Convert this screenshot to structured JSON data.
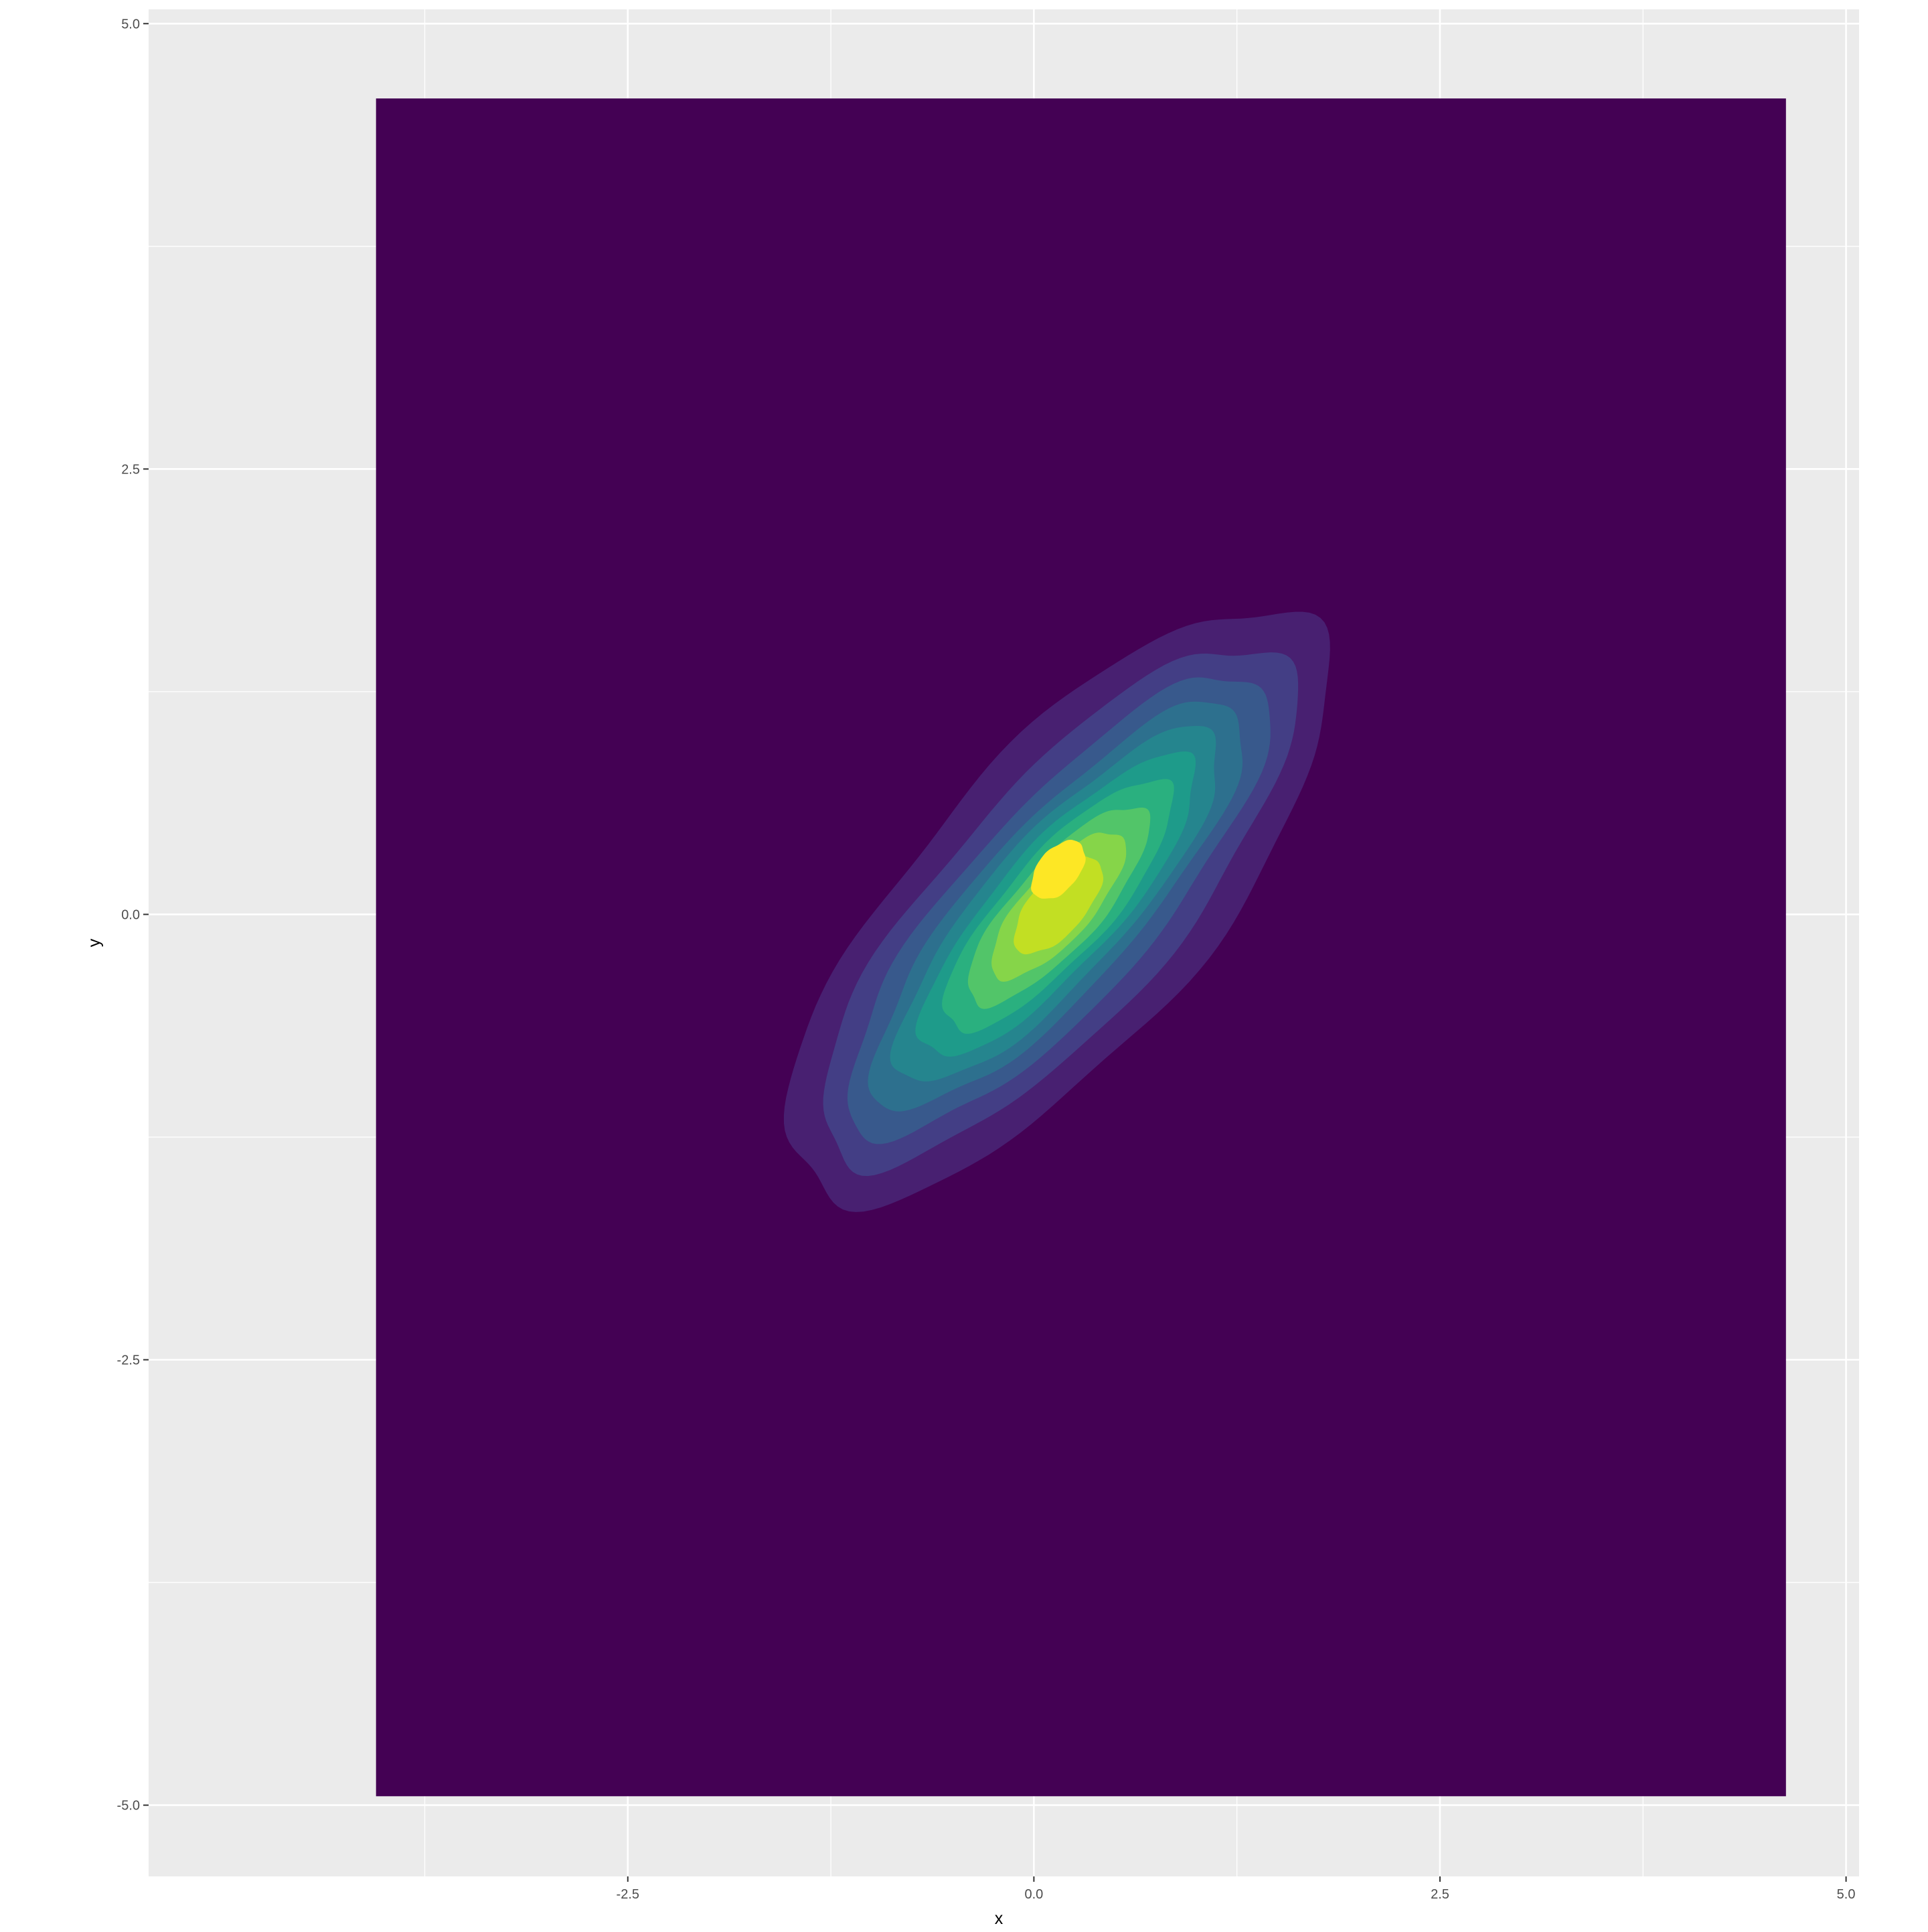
{
  "chart_data": {
    "type": "contour",
    "subtype": "filled 2D density (stat_density_2d_filled)",
    "title": "",
    "xlabel": "x",
    "ylabel": "y",
    "xlim": [
      -5.45,
      5.08
    ],
    "ylim": [
      -5.4,
      5.08
    ],
    "x_ticks": [
      -2.5,
      0.0,
      2.5,
      5.0
    ],
    "x_tick_labels": [
      "-2.5",
      "0.0",
      "2.5",
      "5.0"
    ],
    "y_ticks": [
      -5.0,
      -2.5,
      0.0,
      2.5,
      5.0
    ],
    "y_tick_labels": [
      "-5.0",
      "-2.5",
      "0.0",
      "2.5",
      "5.0"
    ],
    "grid": true,
    "legend": "none",
    "panel_background": "#ebebeb",
    "gridline_color": "#ffffff",
    "density_extent": {
      "x": [
        -4.05,
        4.63
      ],
      "y": [
        -4.95,
        4.58
      ]
    },
    "density": {
      "center": [
        0.15,
        0.05
      ],
      "direction_deg": 45,
      "sd_major": 1.55,
      "sd_minor": 0.38,
      "peak_center": [
        0.15,
        0.25
      ]
    },
    "levels": [
      {
        "band": 1,
        "color": "#440154",
        "contour_max": [
          0.0,
          0.0
        ]
      },
      {
        "band": 2,
        "color": "#482071",
        "contour_max": [
          2.2,
          0.85
        ]
      },
      {
        "band": 3,
        "color": "#433e85",
        "contour_max": [
          1.95,
          0.68
        ]
      },
      {
        "band": 4,
        "color": "#38598c",
        "contour_max": [
          1.75,
          0.56
        ]
      },
      {
        "band": 5,
        "color": "#2d708e",
        "contour_max": [
          1.55,
          0.47
        ]
      },
      {
        "band": 6,
        "color": "#25858e",
        "contour_max": [
          1.35,
          0.41
        ]
      },
      {
        "band": 7,
        "color": "#1e9b8a",
        "contour_max": [
          1.15,
          0.35
        ]
      },
      {
        "band": 8,
        "color": "#2ab07f",
        "contour_max": [
          0.95,
          0.3
        ]
      },
      {
        "band": 9,
        "color": "#52c569",
        "contour_max": [
          0.75,
          0.25
        ]
      },
      {
        "band": 10,
        "color": "#86d549",
        "contour_max": [
          0.55,
          0.2
        ]
      },
      {
        "band": 11,
        "color": "#c2df23",
        "contour_max": [
          0.35,
          0.16
        ]
      },
      {
        "band": 12,
        "color": "#fde725",
        "contour_max": [
          0.2,
          0.12
        ]
      }
    ]
  }
}
